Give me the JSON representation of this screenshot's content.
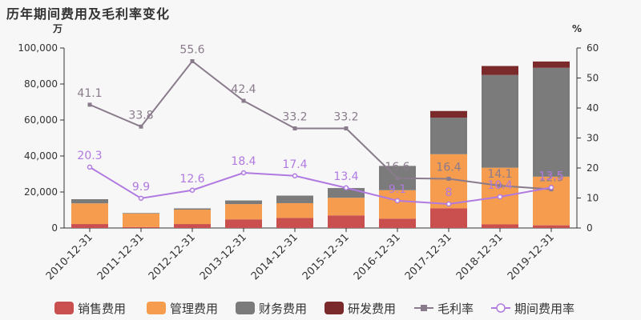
{
  "title": "历年期间费用及毛利率变化",
  "chart_data": {
    "type": "bar",
    "categories": [
      "2010-12-31",
      "2011-12-31",
      "2012-12-31",
      "2013-12-31",
      "2014-12-31",
      "2015-12-31",
      "2016-12-31",
      "2017-12-31",
      "2018-12-31",
      "2019-12-31"
    ],
    "y_left": {
      "unit": "万",
      "range": [
        0,
        100000
      ],
      "ticks": [
        "0",
        "20,000",
        "40,000",
        "60,000",
        "80,000",
        "100,000"
      ]
    },
    "y_right": {
      "unit": "%",
      "range": [
        0,
        60
      ],
      "ticks": [
        "0",
        "10",
        "20",
        "30",
        "40",
        "50",
        "60"
      ]
    },
    "series": [
      {
        "name": "销售费用",
        "kind": "stacked-bar",
        "color": "#c9504f",
        "values": [
          2200,
          500,
          2200,
          4800,
          5600,
          7000,
          5200,
          11000,
          2000,
          1500
        ]
      },
      {
        "name": "管理费用",
        "kind": "stacked-bar",
        "color": "#f59c4f",
        "values": [
          11500,
          7500,
          8000,
          8500,
          8200,
          9800,
          15800,
          30000,
          31500,
          27000
        ]
      },
      {
        "name": "财务费用",
        "kind": "stacked-bar",
        "color": "#7b7b7b",
        "values": [
          2300,
          300,
          700,
          2000,
          4200,
          5400,
          13500,
          20300,
          51500,
          60500
        ]
      },
      {
        "name": "研发费用",
        "kind": "stacked-bar",
        "color": "#7a2a2a",
        "values": [
          0,
          0,
          0,
          0,
          0,
          0,
          0,
          3700,
          5000,
          3500
        ]
      },
      {
        "name": "毛利率",
        "kind": "line",
        "color": "#8a7b8c",
        "values": [
          41.1,
          33.8,
          55.6,
          42.4,
          33.2,
          33.2,
          16.6,
          16.4,
          14.1,
          12.9
        ],
        "labels": [
          "41.1",
          "33.8",
          "55.6",
          "42.4",
          "33.2",
          "33.2",
          "16.6",
          "16.4",
          "14.1",
          "12.9"
        ]
      },
      {
        "name": "期间费用率",
        "kind": "line",
        "color": "#b07ae0",
        "values": [
          20.3,
          9.9,
          12.6,
          18.4,
          17.4,
          13.4,
          9.1,
          8,
          10.4,
          13.5
        ],
        "labels": [
          "20.3",
          "9.9",
          "12.6",
          "18.4",
          "17.4",
          "13.4",
          "9.1",
          "8",
          "10.4",
          "13.5"
        ]
      }
    ],
    "legend_position": "bottom"
  }
}
